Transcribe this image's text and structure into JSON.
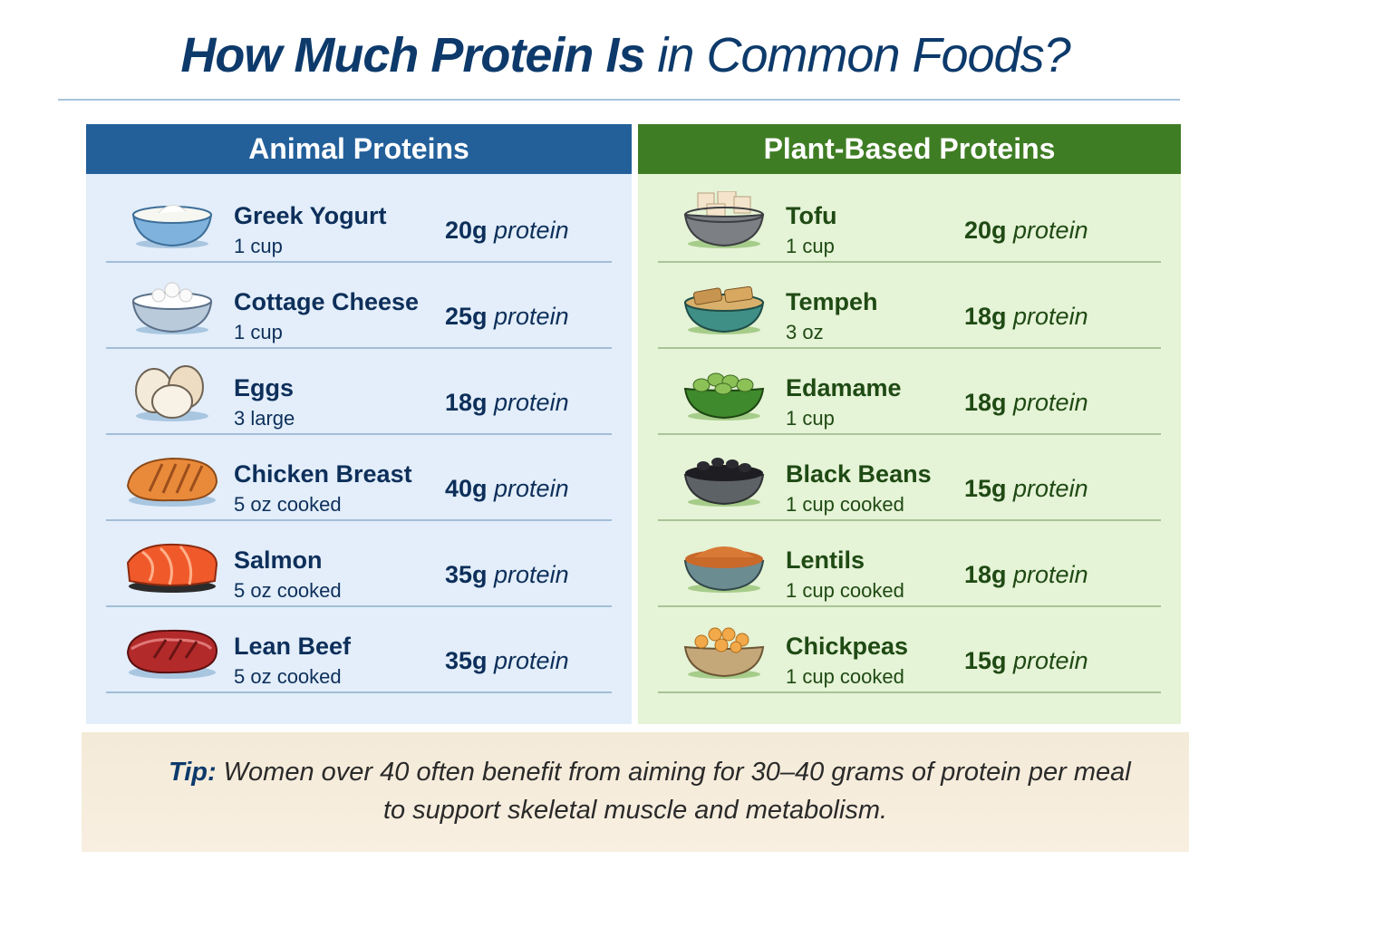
{
  "title": {
    "bold": "How Much Protein Is",
    "rest": " in Common Foods?"
  },
  "colors": {
    "title": "#0d3a6b",
    "animal_header": "#23609a",
    "plant_header": "#3f7d24",
    "animal_bg": "#e3eefa",
    "plant_bg": "#e5f3d6",
    "tip_bg": "#f6ecdc"
  },
  "animal": {
    "header": "Animal Proteins",
    "items": [
      {
        "icon": "yogurt-bowl-icon",
        "name": "Greek Yogurt",
        "serving": "1 cup",
        "grams": "20g",
        "unit": " protein"
      },
      {
        "icon": "cottage-cheese-bowl-icon",
        "name": "Cottage Cheese",
        "serving": "1 cup",
        "grams": "25g",
        "unit": " protein"
      },
      {
        "icon": "eggs-icon",
        "name": "Eggs",
        "serving": "3 large",
        "grams": "18g",
        "unit": " protein"
      },
      {
        "icon": "chicken-breast-icon",
        "name": "Chicken Breast",
        "serving": "5 oz cooked",
        "grams": "40g",
        "unit": " protein"
      },
      {
        "icon": "salmon-icon",
        "name": "Salmon",
        "serving": "5 oz cooked",
        "grams": "35g",
        "unit": " protein"
      },
      {
        "icon": "steak-icon",
        "name": "Lean Beef",
        "serving": "5 oz cooked",
        "grams": "35g",
        "unit": " protein"
      }
    ]
  },
  "plant": {
    "header": "Plant-Based Proteins",
    "items": [
      {
        "icon": "tofu-bowl-icon",
        "name": "Tofu",
        "serving": "1 cup",
        "grams": "20g",
        "unit": " protein"
      },
      {
        "icon": "tempeh-bowl-icon",
        "name": "Tempeh",
        "serving": "3 oz",
        "grams": "18g",
        "unit": " protein"
      },
      {
        "icon": "edamame-bowl-icon",
        "name": "Edamame",
        "serving": "1 cup",
        "grams": "18g",
        "unit": " protein"
      },
      {
        "icon": "black-beans-bowl-icon",
        "name": "Black Beans",
        "serving": "1 cup cooked",
        "grams": "15g",
        "unit": " protein"
      },
      {
        "icon": "lentils-bowl-icon",
        "name": "Lentils",
        "serving": "1 cup cooked",
        "grams": "18g",
        "unit": " protein"
      },
      {
        "icon": "chickpeas-bowl-icon",
        "name": "Chickpeas",
        "serving": "1 cup cooked",
        "grams": "15g",
        "unit": " protein"
      }
    ]
  },
  "tip": {
    "label": "Tip:",
    "line1": " Women over 40 often benefit from aiming for 30–40 grams of protein per meal",
    "line2": "to support skeletal muscle and metabolism."
  }
}
